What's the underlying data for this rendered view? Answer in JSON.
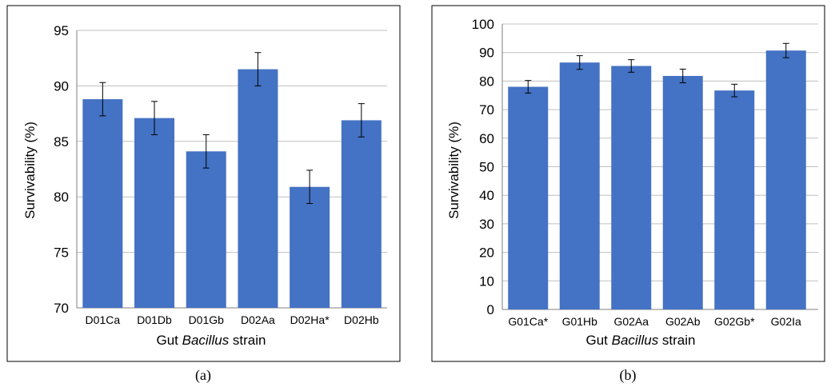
{
  "chart_data": [
    {
      "type": "bar",
      "panel_label": "(a)",
      "categories": [
        "D01Ca",
        "D01Db",
        "D01Gb",
        "D02Aa",
        "D02Ha*",
        "D02Hb"
      ],
      "values": [
        88.8,
        87.1,
        84.1,
        91.5,
        80.9,
        86.9
      ],
      "errors": [
        1.5,
        1.5,
        1.5,
        1.5,
        1.5,
        1.5
      ],
      "ylabel": "Survivability (%)",
      "xlabel_parts": [
        "Gut ",
        "Bacillus",
        " strain"
      ],
      "ylim": [
        70,
        95
      ],
      "yticks": [
        70,
        75,
        80,
        85,
        90,
        95
      ],
      "grid": true
    },
    {
      "type": "bar",
      "panel_label": "(b)",
      "categories": [
        "G01Ca*",
        "G01Hb",
        "G02Aa",
        "G02Ab",
        "G02Gb*",
        "G02Ia"
      ],
      "values": [
        78.0,
        86.5,
        85.3,
        81.8,
        76.7,
        90.7
      ],
      "errors": [
        2.2,
        2.4,
        2.2,
        2.4,
        2.2,
        2.5
      ],
      "ylabel": "Survivability (%)",
      "xlabel_parts": [
        "Gut ",
        "Bacillus",
        " strain"
      ],
      "ylim": [
        0,
        100
      ],
      "yticks": [
        0,
        10,
        20,
        30,
        40,
        50,
        60,
        70,
        80,
        90,
        100
      ],
      "grid": true
    }
  ],
  "colors": {
    "bar": "#4472c4",
    "grid": "#bfbfbf",
    "frame": "#000000"
  }
}
